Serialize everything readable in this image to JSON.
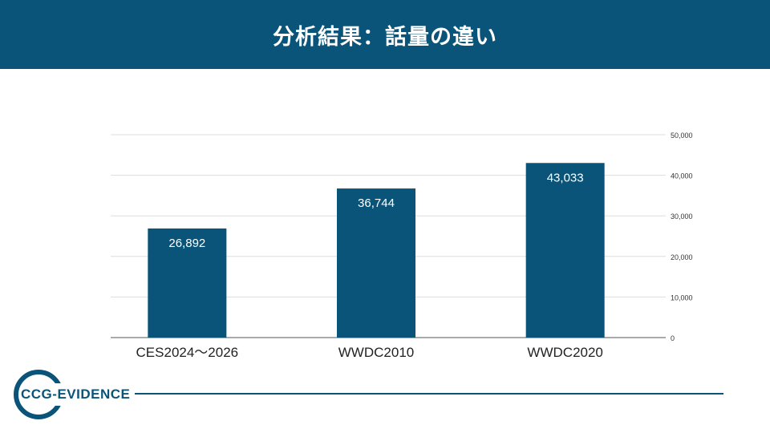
{
  "header": {
    "title": "分析結果：話量の違い"
  },
  "chart_data": {
    "type": "bar",
    "categories": [
      "CES2024～2026",
      "WWDC2010",
      "WWDC2020"
    ],
    "values": [
      26892,
      36744,
      43033
    ],
    "value_labels": [
      "26,892",
      "36,744",
      "43,033"
    ],
    "ylim": [
      0,
      50000
    ],
    "yticks": [
      0,
      10000,
      20000,
      30000,
      40000,
      50000
    ],
    "ytick_labels": [
      "0",
      "10,000",
      "20,000",
      "30,000",
      "40,000",
      "50,000"
    ],
    "y_axis_side": "right",
    "grid": true,
    "bar_color": "#0b5479",
    "title": "",
    "xlabel": "",
    "ylabel": ""
  },
  "logo": {
    "text": "CCG-EVIDENCE",
    "color": "#0b5479"
  }
}
